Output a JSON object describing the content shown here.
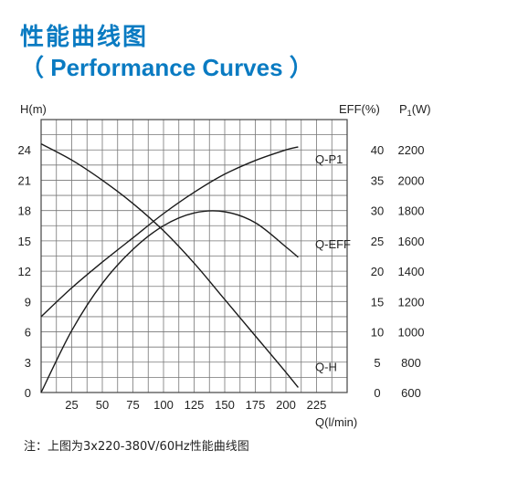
{
  "title_cn": "性能曲线图",
  "title_en": "（ Performance Curves ）",
  "note": "注：上图为3x220-380V/60Hz性能曲线图",
  "chart_data": {
    "type": "line",
    "xlabel": "Q(l/min)",
    "xlim": [
      0,
      250
    ],
    "x_ticks": [
      25,
      50,
      75,
      100,
      125,
      150,
      175,
      200,
      225
    ],
    "y_axes": {
      "H": {
        "label": "H(m)",
        "lim": [
          0,
          27
        ],
        "ticks": [
          0,
          3,
          6,
          9,
          12,
          15,
          18,
          21,
          24
        ]
      },
      "EFF": {
        "label": "EFF(%)",
        "lim": [
          0,
          45
        ],
        "ticks": [
          0,
          5,
          10,
          15,
          20,
          25,
          30,
          35,
          40
        ]
      },
      "P1": {
        "label": "P",
        "label_sub": "1",
        "label_suffix": "(W)",
        "lim": [
          600,
          2400
        ],
        "ticks": [
          600,
          800,
          1000,
          1200,
          1400,
          1600,
          1800,
          2000,
          2200
        ]
      }
    },
    "grid": true,
    "series": [
      {
        "name": "Q-H",
        "axis": "H",
        "x": [
          0,
          25,
          50,
          75,
          100,
          125,
          150,
          175,
          200,
          210
        ],
        "y": [
          24.6,
          23.0,
          21.0,
          18.7,
          16.0,
          12.8,
          9.2,
          5.6,
          2.0,
          0.5
        ]
      },
      {
        "name": "Q-P1",
        "axis": "P1",
        "x": [
          0,
          25,
          50,
          75,
          100,
          125,
          150,
          175,
          200,
          210
        ],
        "y": [
          1100,
          1290,
          1460,
          1620,
          1780,
          1920,
          2040,
          2130,
          2200,
          2220
        ]
      },
      {
        "name": "Q-EFF",
        "axis": "EFF",
        "x": [
          0,
          25,
          50,
          75,
          100,
          125,
          150,
          175,
          200,
          210
        ],
        "y": [
          0,
          10.2,
          18.0,
          23.6,
          27.5,
          29.6,
          29.8,
          28.0,
          24.0,
          22.3
        ]
      }
    ]
  }
}
